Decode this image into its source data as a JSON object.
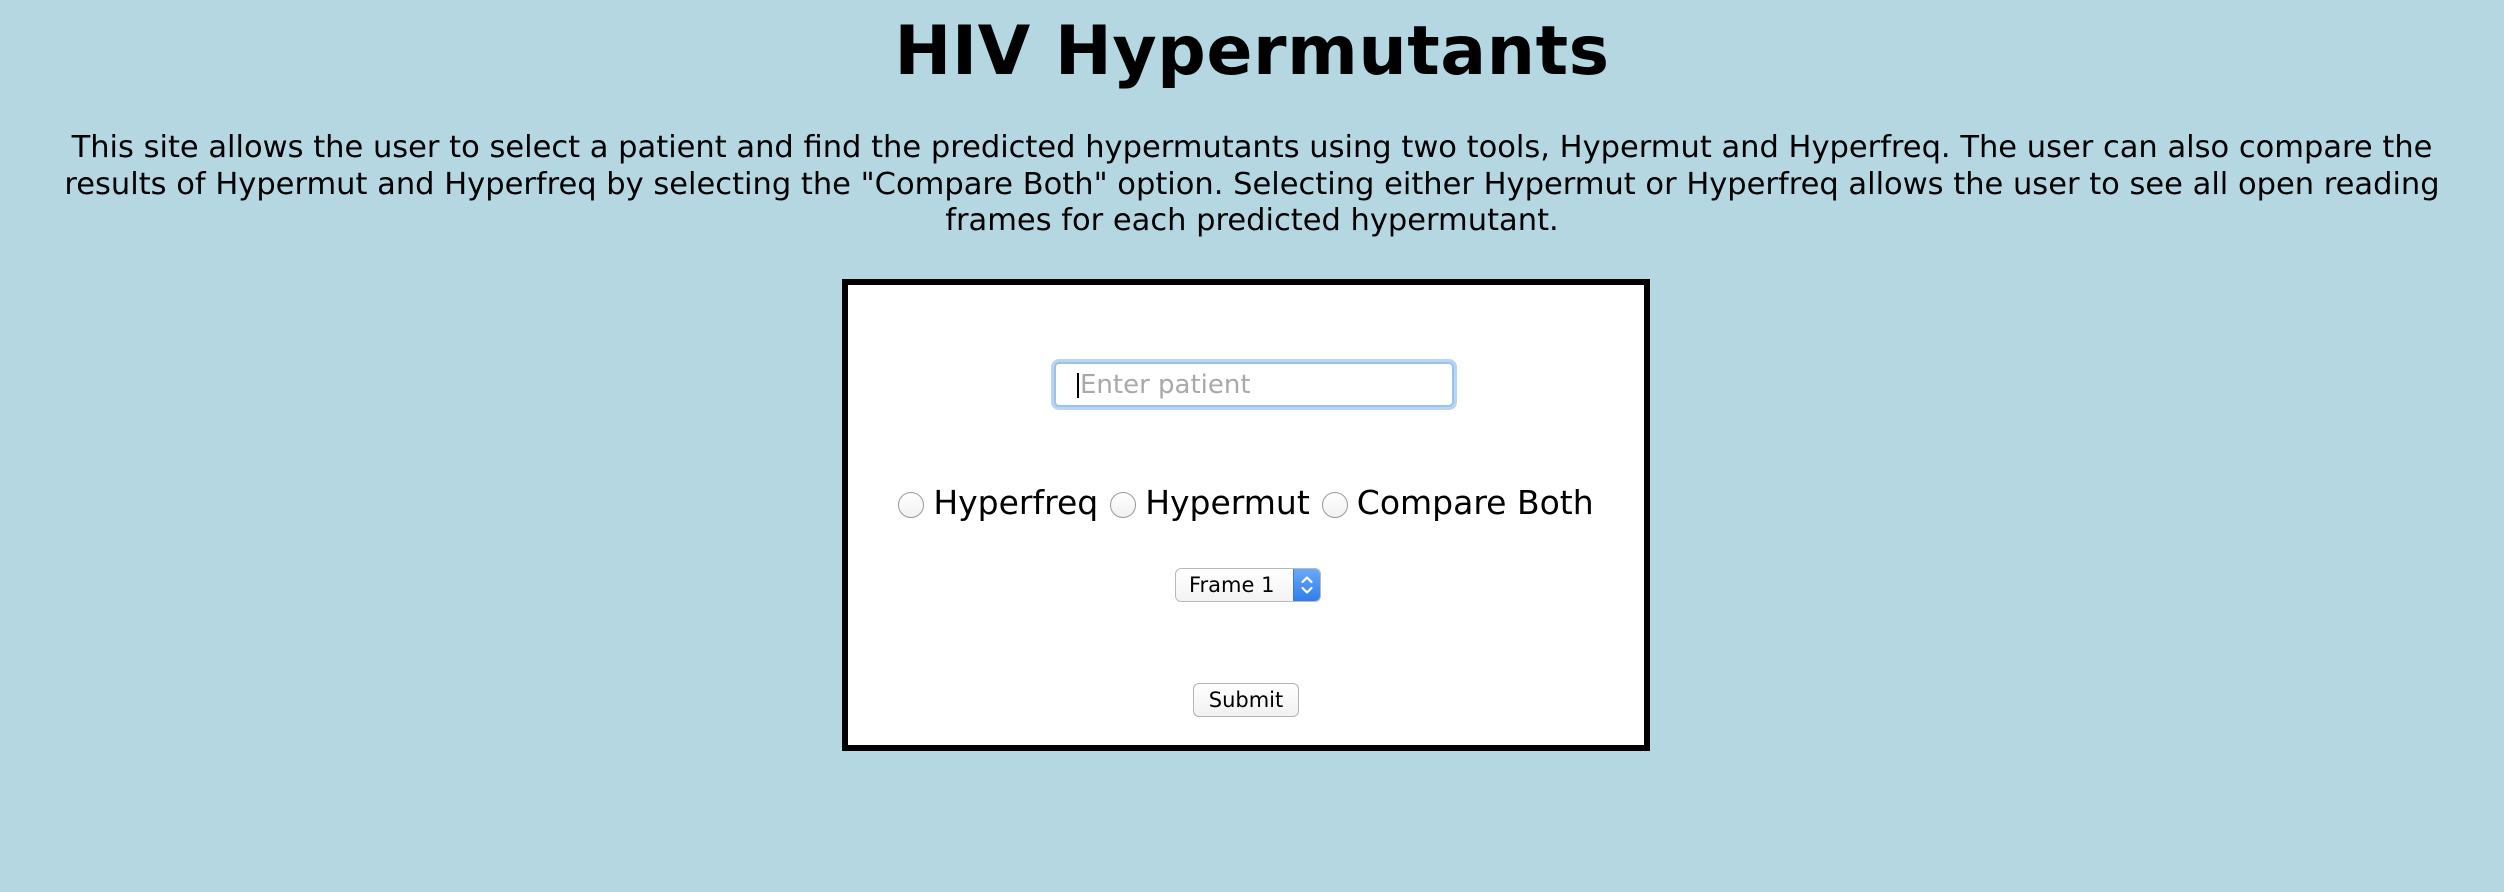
{
  "header": {
    "title": "HIV Hypermutants",
    "description": "This site allows the user to select a patient and find the predicted hypermutants using two tools, Hypermut and Hyperfreq. The user can also compare the results of Hypermut and Hyperfreq by selecting the \"Compare Both\" option. Selecting either Hypermut or Hyperfreq allows the user to see all open reading frames for each predicted hypermutant."
  },
  "form": {
    "patient_input": {
      "value": "",
      "placeholder": "Enter patient"
    },
    "radio_options": [
      {
        "label": "Hyperfreq",
        "checked": false
      },
      {
        "label": "Hypermut",
        "checked": false
      },
      {
        "label": "Compare Both",
        "checked": false
      }
    ],
    "frame_select": {
      "selected": "Frame 1"
    },
    "submit_label": "Submit"
  },
  "colors": {
    "page_background": "#b4d7e2",
    "card_background": "#ffffff",
    "card_border": "#000000",
    "focus_ring": "#9cc2ec",
    "select_arrow_accent": "#2f7df0"
  },
  "icons": {
    "select_arrows": "chevron-up-down-icon"
  }
}
